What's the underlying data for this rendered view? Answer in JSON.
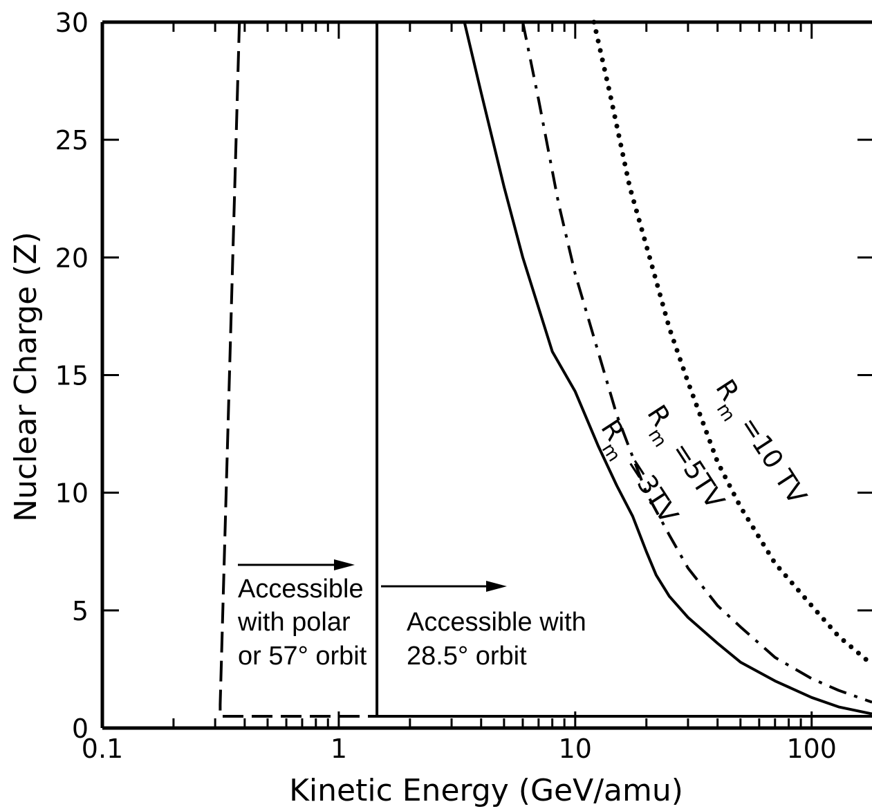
{
  "chart_data": {
    "type": "line",
    "xlabel": "Kinetic Energy (GeV/amu)",
    "ylabel": "Nuclear Charge (Z)",
    "xscale": "log",
    "xlim": [
      0.1,
      180
    ],
    "ylim": [
      0,
      30
    ],
    "x_ticks": [
      0.1,
      1,
      10,
      100
    ],
    "x_tick_labels": [
      "0.1",
      "1",
      "10",
      "100"
    ],
    "y_ticks": [
      0,
      5,
      10,
      15,
      20,
      25,
      30
    ],
    "y_tick_labels": [
      "0",
      "5",
      "10",
      "15",
      "20",
      "25",
      "30"
    ],
    "grid": false,
    "legend": "none",
    "series": [
      {
        "name": "Rm = 3 TV",
        "label_parts": [
          "R",
          "m",
          " =3TV"
        ],
        "style": "solid",
        "x": [
          3.4,
          4.0,
          5.0,
          6.0,
          8.0,
          10.0,
          12.5,
          15.0,
          17.5,
          20.0,
          22.0,
          25.0,
          30.0,
          40.0,
          50.0,
          70.0,
          100.0,
          130.0,
          180.0
        ],
        "y": [
          30,
          27,
          23,
          20,
          16,
          14.3,
          12,
          10.3,
          9,
          7.5,
          6.5,
          5.6,
          4.7,
          3.6,
          2.8,
          2.0,
          1.3,
          0.9,
          0.6
        ]
      },
      {
        "name": "Rm = 5 TV",
        "label_parts": [
          "R",
          "m",
          " =5TV"
        ],
        "style": "dashdot",
        "x": [
          6.0,
          7.0,
          8.5,
          10.0,
          12.5,
          15.0,
          20.0,
          25.0,
          30.0,
          40.0,
          50.0,
          70.0,
          100.0,
          130.0,
          180.0
        ],
        "y": [
          30,
          26.7,
          22.3,
          19.3,
          16,
          13.3,
          10,
          8.2,
          6.8,
          5.2,
          4.3,
          3.0,
          2.1,
          1.6,
          1.1
        ]
      },
      {
        "name": "Rm = 10 TV",
        "label_parts": [
          "R",
          "m",
          " =10 TV"
        ],
        "style": "dotted",
        "x": [
          12.0,
          14.0,
          17.0,
          20.0,
          25.0,
          30.0,
          40.0,
          50.0,
          70.0,
          100.0,
          130.0,
          180.0
        ],
        "y": [
          30,
          27,
          23,
          20.5,
          17,
          14.7,
          11.3,
          9.4,
          7.0,
          5.2,
          3.9,
          2.7
        ]
      }
    ],
    "boundaries": [
      {
        "name": "polar or 57° orbit cutoff",
        "style": "dashed",
        "x": [
          0.38,
          0.315,
          0.315,
          1.45
        ],
        "y": [
          30,
          1.0,
          0.5,
          0.5
        ]
      },
      {
        "name": "28.5° orbit cutoff",
        "style": "solid",
        "x": [
          1.45,
          1.45,
          180.0
        ],
        "y": [
          30,
          0.5,
          0.5
        ]
      }
    ],
    "annotations": [
      {
        "lines": [
          "Accessible",
          "with polar",
          "or 57° orbit"
        ]
      },
      {
        "lines": [
          "Accessible with",
          "28.5° orbit"
        ]
      }
    ]
  }
}
